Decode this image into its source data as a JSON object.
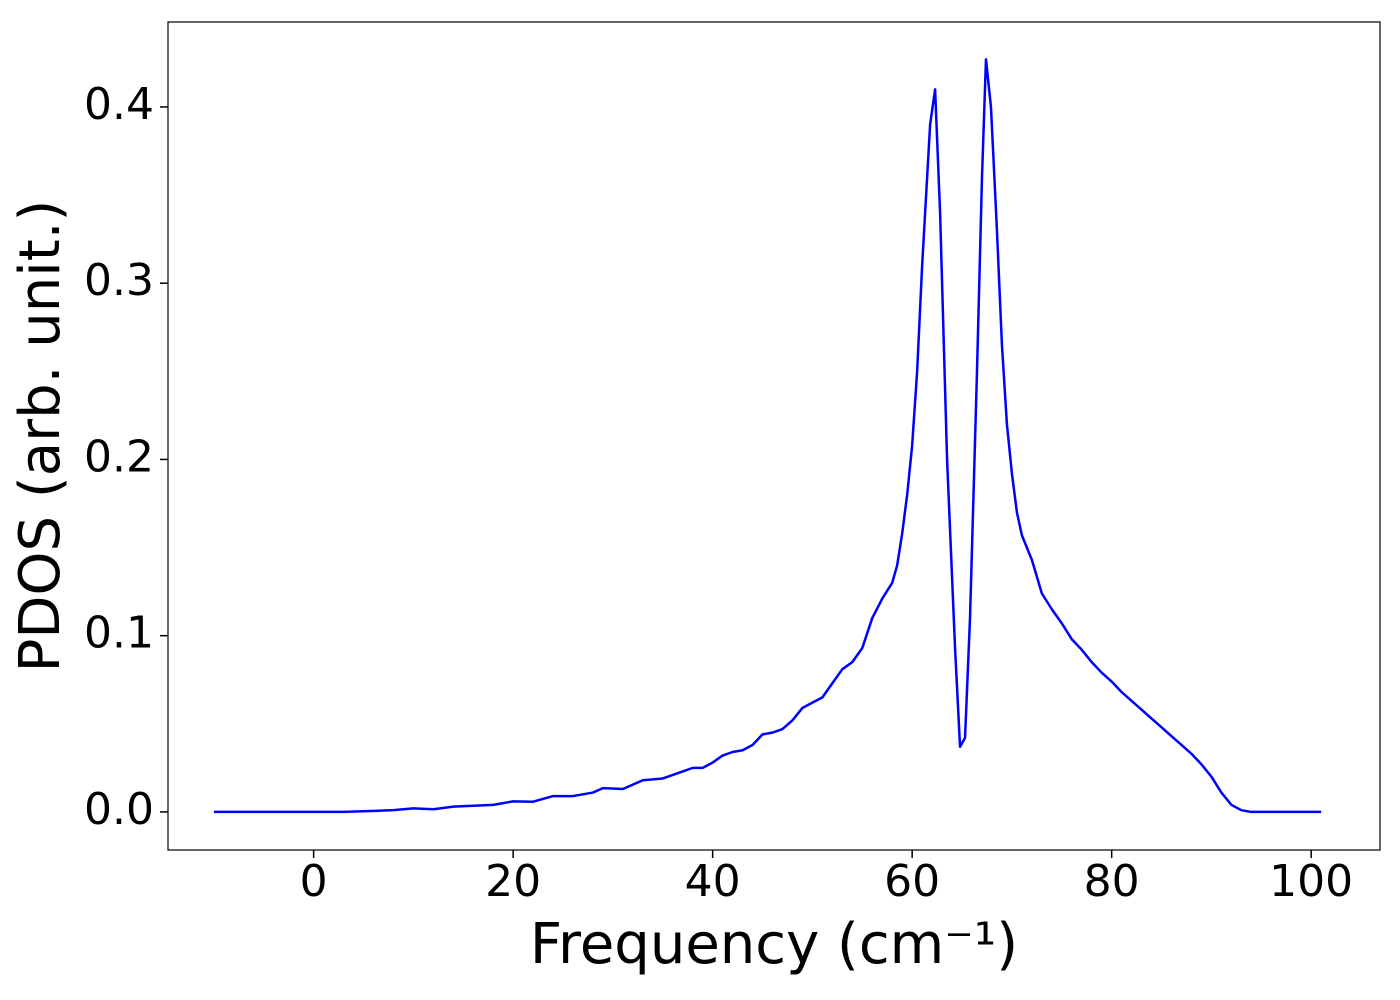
{
  "chart_data": {
    "type": "line",
    "xlabel": "Frequency (cm⁻¹)",
    "ylabel": "PDOS (arb. unit.)",
    "xlim": [
      -14.6,
      106.9
    ],
    "ylim": [
      -0.0216,
      0.4482
    ],
    "xticks": [
      0,
      20,
      40,
      60,
      80,
      100
    ],
    "yticks": [
      {
        "value": 0,
        "label": "0.0"
      },
      0.1,
      0.2,
      0.3,
      0.4
    ],
    "grid": false,
    "series": [
      {
        "color": "#0000ff",
        "x": [
          -10,
          0,
          3,
          8,
          10,
          12,
          14,
          16,
          18,
          20,
          22,
          24,
          26,
          28,
          29,
          31,
          33,
          35,
          37,
          38,
          39,
          40,
          41,
          42,
          43,
          44,
          45,
          46,
          47,
          48,
          49,
          50,
          51,
          52,
          53,
          54,
          55,
          56,
          57,
          58,
          58.5,
          59,
          59.5,
          60,
          60.5,
          61,
          61.8,
          62.3,
          62.8,
          63.5,
          64.3,
          64.8,
          65.3,
          65.8,
          66.5,
          67,
          67.4,
          67.9,
          68.5,
          69,
          69.5,
          70,
          70.5,
          71,
          72,
          73,
          74,
          75,
          76,
          77,
          78,
          79,
          80,
          81,
          82,
          83,
          84,
          85,
          86,
          87,
          88,
          89,
          90,
          91,
          92,
          93,
          94,
          101
        ],
        "values": [
          0,
          0,
          0,
          0.001,
          0.002,
          0.0015,
          0.003,
          0.0035,
          0.004,
          0.006,
          0.0058,
          0.009,
          0.009,
          0.011,
          0.0135,
          0.013,
          0.018,
          0.019,
          0.023,
          0.025,
          0.025,
          0.028,
          0.032,
          0.034,
          0.035,
          0.038,
          0.044,
          0.045,
          0.047,
          0.052,
          0.059,
          0.062,
          0.065,
          0.073,
          0.081,
          0.085,
          0.093,
          0.11,
          0.121,
          0.13,
          0.14,
          0.158,
          0.18,
          0.208,
          0.25,
          0.31,
          0.39,
          0.41,
          0.34,
          0.2,
          0.093,
          0.037,
          0.042,
          0.11,
          0.25,
          0.36,
          0.427,
          0.4,
          0.33,
          0.265,
          0.22,
          0.192,
          0.17,
          0.157,
          0.143,
          0.124,
          0.115,
          0.107,
          0.098,
          0.092,
          0.085,
          0.079,
          0.074,
          0.068,
          0.063,
          0.058,
          0.053,
          0.048,
          0.043,
          0.038,
          0.033,
          0.027,
          0.02,
          0.011,
          0.004,
          0.001,
          0,
          0
        ]
      }
    ]
  }
}
